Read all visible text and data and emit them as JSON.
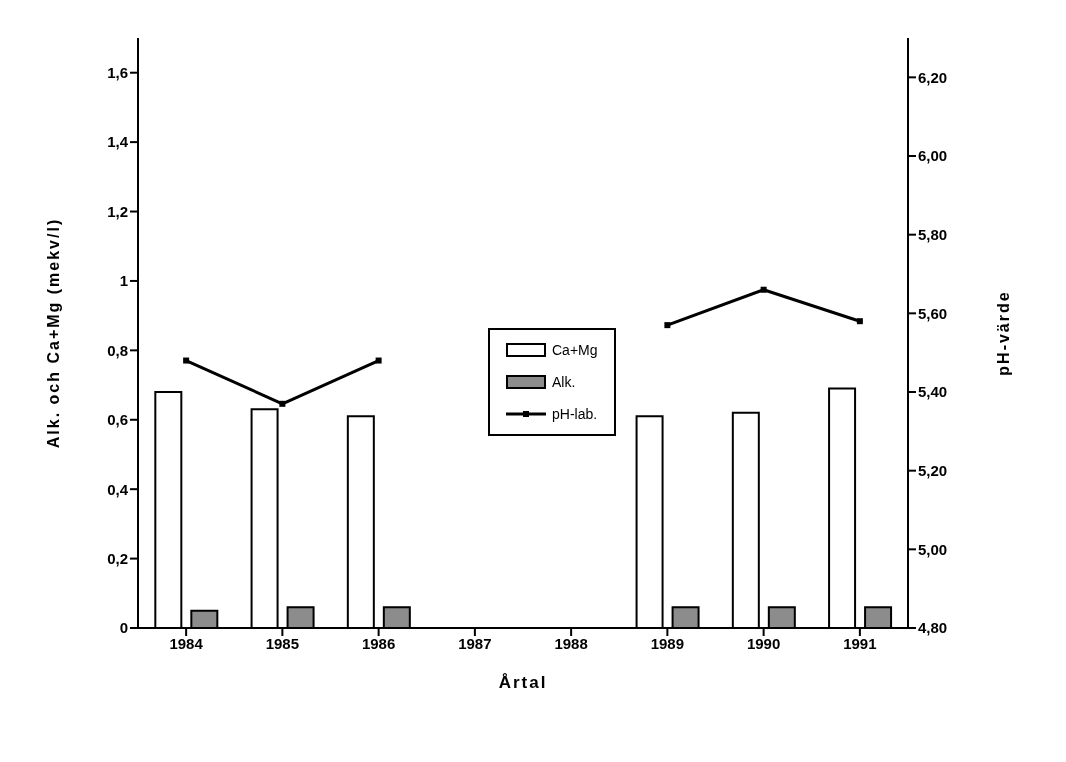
{
  "chart_data": {
    "type": "bar",
    "xlabel": "Årtal",
    "ylabel": "Alk. och Ca+Mg (mekv/l)",
    "y2label": "pH-värde",
    "categories": [
      "1984",
      "1985",
      "1986",
      "1987",
      "1988",
      "1989",
      "1990",
      "1991"
    ],
    "series": [
      {
        "name": "Ca+Mg",
        "color": "#ffffff",
        "values": [
          0.68,
          0.63,
          0.61,
          null,
          null,
          0.61,
          0.62,
          0.69
        ]
      },
      {
        "name": "Alk.",
        "color": "#8c8c8c",
        "values": [
          0.05,
          0.06,
          0.06,
          null,
          null,
          0.06,
          0.06,
          0.06
        ]
      },
      {
        "name": "pH-lab.",
        "type": "line",
        "axis": "y2",
        "color": "#000000",
        "marker": "square",
        "values": [
          5.48,
          5.37,
          5.48,
          null,
          null,
          5.57,
          5.66,
          5.58
        ]
      }
    ],
    "ylim": [
      0,
      1.7
    ],
    "yticks": [
      0,
      {
        "value": 0.2,
        "label": "0,2"
      },
      {
        "value": 0.4,
        "label": "0,4"
      },
      {
        "value": 0.6,
        "label": "0,6"
      },
      {
        "value": 0.8,
        "label": "0,8"
      },
      1,
      {
        "value": 1.2,
        "label": "1,2"
      },
      {
        "value": 1.4,
        "label": "1,4"
      },
      {
        "value": 1.6,
        "label": "1,6"
      }
    ],
    "y2lim": [
      4.8,
      6.3
    ],
    "y2ticks": [
      {
        "value": 4.8,
        "label": "4,80"
      },
      {
        "value": 5.0,
        "label": "5,00"
      },
      {
        "value": 5.2,
        "label": "5,20"
      },
      {
        "value": 5.4,
        "label": "5,40"
      },
      {
        "value": 5.6,
        "label": "5,60"
      },
      {
        "value": 5.8,
        "label": "5,80"
      },
      {
        "value": 6.0,
        "label": "6,00"
      },
      {
        "value": 6.2,
        "label": "6,20"
      }
    ],
    "grid": false,
    "legend": "center"
  }
}
